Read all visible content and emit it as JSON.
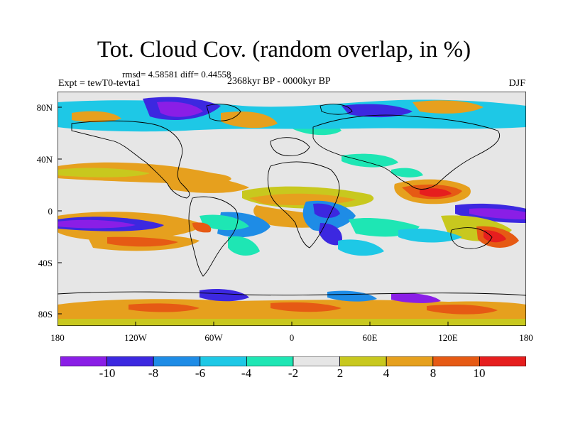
{
  "header": {
    "title": "Tot. Cloud Cov. (random overlap, in %)",
    "stats": "rmsd= 4.58581 diff= 0.44558",
    "experiment": "Expt = tewT0-tevta1",
    "period": "2368kyr BP - 0000kyr BP",
    "season": "DJF"
  },
  "map": {
    "lat_labels": [
      "80N",
      "40N",
      "0",
      "40S",
      "80S"
    ],
    "lon_labels": [
      "180",
      "120W",
      "60W",
      "0",
      "60E",
      "120E",
      "180"
    ]
  },
  "colorbar": {
    "labels": [
      "-10",
      "-8",
      "-6",
      "-4",
      "-2",
      "2",
      "4",
      "8",
      "10"
    ],
    "colors": [
      "#8a1ee6",
      "#3c28e0",
      "#1e8ce6",
      "#1ec8e6",
      "#1ee6b4",
      "#e6e6e6",
      "#c8c81e",
      "#e6a01e",
      "#e65a14",
      "#e61e1e"
    ]
  }
}
